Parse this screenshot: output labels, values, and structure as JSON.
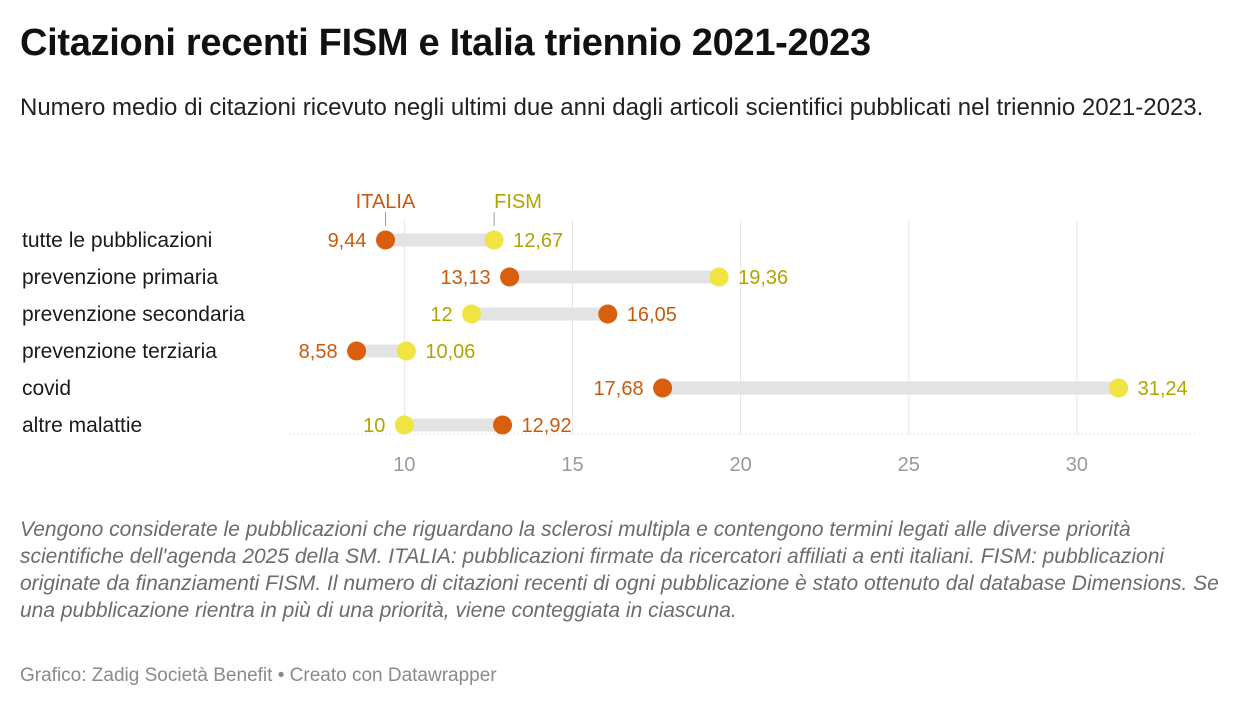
{
  "title": "Citazioni recenti FISM e Italia triennio 2021-2023",
  "subtitle": "Numero medio di citazioni ricevuto negli ultimi due anni dagli articoli scientifici pubblicati nel triennio 2021-2023.",
  "notes": "Vengono considerate le pubblicazioni che riguardano la sclerosi multipla e contengono termini legati alle diverse priorità scientifiche dell'agenda 2025 della SM. ITALIA: pubblicazioni firmate da ricercatori affiliati a enti italiani. FISM: pubblicazioni originate da finanziamenti FISM. Il numero di citazioni recenti di ogni pubblicazione è stato ottenuto dal database Dimensions. Se una pubblicazione rientra in più di una priorità, viene conteggiata in ciascuna.",
  "byline": {
    "source": "Grafico: Zadig Società Benefit",
    "separator": "•",
    "credit": "Creato con Datawrapper"
  },
  "colors": {
    "italia": "#d95f0e",
    "italia_text": "#c95a0c",
    "fism": "#f0e442",
    "fism_text": "#b0a400",
    "range_bar": "#e3e3e3",
    "grid": "#e4e4e4",
    "tick_text": "#9a9a9a"
  },
  "chart_data": {
    "type": "range-dot",
    "categories": [
      "tutte le pubblicazioni",
      "prevenzione primaria",
      "prevenzione secondaria",
      "prevenzione terziaria",
      "covid",
      "altre malattie"
    ],
    "series": [
      {
        "name": "ITALIA",
        "values": [
          9.44,
          13.13,
          16.05,
          8.58,
          17.68,
          12.92
        ],
        "labels": [
          "9,44",
          "13,13",
          "16,05",
          "8,58",
          "17,68",
          "12,92"
        ]
      },
      {
        "name": "FISM",
        "values": [
          12.67,
          19.36,
          12,
          10.06,
          31.24,
          10
        ],
        "labels": [
          "12,67",
          "19,36",
          "12",
          "10,06",
          "31,24",
          "10"
        ]
      }
    ],
    "xlim": [
      6.6,
      33.6
    ],
    "xticks": [
      10,
      15,
      20,
      25,
      30
    ],
    "xtick_labels": [
      "10",
      "15",
      "20",
      "25",
      "30"
    ],
    "grid": true,
    "legend": "inline-top"
  }
}
